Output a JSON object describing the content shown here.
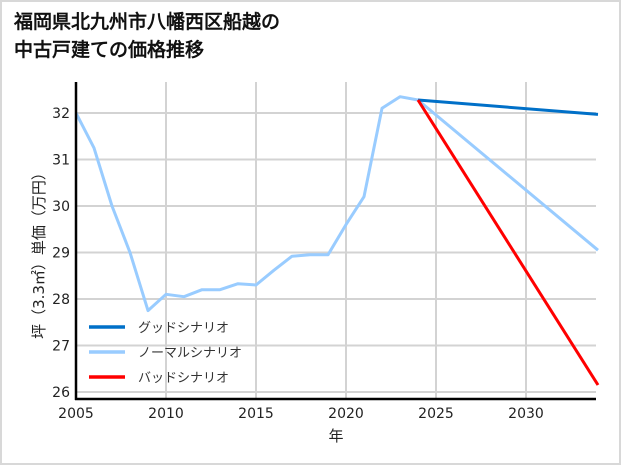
{
  "title_line1": "福岡県北九州市八幡西区船越の",
  "title_line2": "中古戸建ての価格推移",
  "chart_data": {
    "type": "line",
    "title": "福岡県北九州市八幡西区船越の中古戸建ての価格推移",
    "xlabel": "年",
    "ylabel": "坪（3.3㎡）単価（万円）",
    "xlim": [
      2005,
      2034
    ],
    "ylim": [
      25.9,
      32.7
    ],
    "xticks": [
      2005,
      2010,
      2015,
      2020,
      2025,
      2030
    ],
    "yticks": [
      26,
      27,
      28,
      29,
      30,
      31,
      32
    ],
    "grid": true,
    "legend_position": "lower left",
    "series": [
      {
        "name": "グッドシナリオ",
        "color": "#0070c8",
        "x": [
          2024,
          2034
        ],
        "values": [
          32.28,
          31.97
        ]
      },
      {
        "name": "ノーマルシナリオ",
        "color": "#99ccff",
        "x": [
          2005,
          2006,
          2007,
          2008,
          2009,
          2010,
          2011,
          2012,
          2013,
          2014,
          2015,
          2016,
          2017,
          2018,
          2019,
          2020,
          2021,
          2022,
          2023,
          2024,
          2034
        ],
        "values": [
          32.0,
          31.25,
          30.0,
          29.0,
          27.75,
          28.1,
          28.05,
          28.2,
          28.2,
          28.33,
          28.3,
          28.62,
          28.92,
          28.95,
          28.95,
          29.6,
          30.2,
          32.1,
          32.35,
          32.28,
          29.05
        ]
      },
      {
        "name": "バッドシナリオ",
        "color": "#ff0000",
        "x": [
          2024,
          2034
        ],
        "values": [
          32.28,
          26.15
        ]
      }
    ]
  }
}
